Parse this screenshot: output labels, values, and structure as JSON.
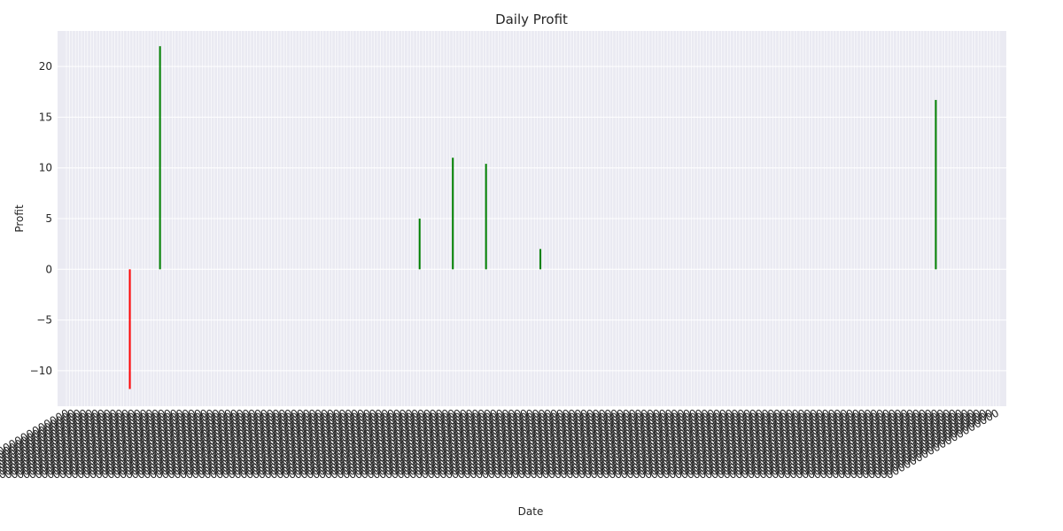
{
  "chart_data": {
    "type": "bar",
    "title": "Daily Profit",
    "xlabel": "Date",
    "ylabel": "Profit",
    "ylim": [
      -13.5,
      23.5
    ],
    "yticks": [
      -10,
      -5,
      0,
      5,
      10,
      15,
      20
    ],
    "grid": true,
    "legend": "none",
    "category_count": 310,
    "x_tick_labels_legible": false,
    "colors": {
      "positive": "#008000",
      "negative": "#ff0000",
      "background": "#eaeaf2",
      "grid": "#ffffff"
    },
    "bars": [
      {
        "index": 21,
        "value": -11.8
      },
      {
        "index": 31,
        "value": 22.0
      },
      {
        "index": 117,
        "value": 5.0
      },
      {
        "index": 128,
        "value": 11.0
      },
      {
        "index": 139,
        "value": 10.4
      },
      {
        "index": 157,
        "value": 2.0
      },
      {
        "index": 288,
        "value": 16.7
      }
    ]
  }
}
